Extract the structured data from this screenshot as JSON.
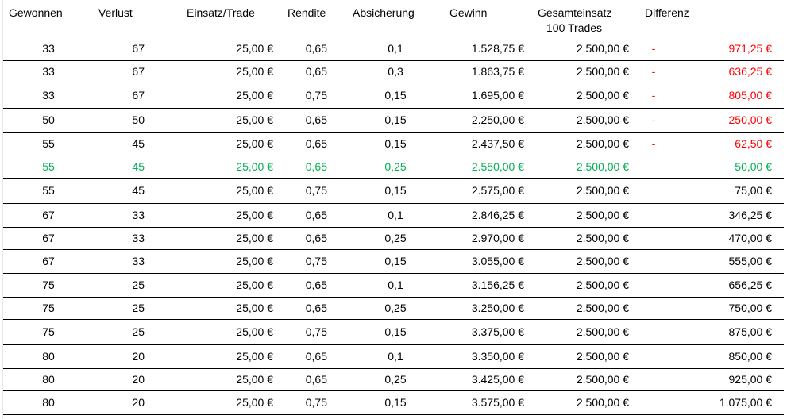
{
  "headers": {
    "won": "Gewonnen",
    "lost": "Verlust",
    "stake": "Einsatz/Trade",
    "return": "Rendite",
    "hedge": "Absicherung",
    "profit": "Gewinn",
    "total_stake": "Gesamteinsatz",
    "total_stake_sub": "100 Trades",
    "difference": "Differenz"
  },
  "colors": {
    "negative": "#ff0000",
    "highlight": "#00b050",
    "text": "#000000"
  },
  "rows": [
    {
      "won": "33",
      "lost": "67",
      "stake": "25,00 €",
      "return": "0,65",
      "hedge": "0,1",
      "profit": "1.528,75 €",
      "total": "2.500,00 €",
      "sign": "-",
      "diff": "971,25 €",
      "style": "neg"
    },
    {
      "won": "33",
      "lost": "67",
      "stake": "25,00 €",
      "return": "0,65",
      "hedge": "0,3",
      "profit": "1.863,75 €",
      "total": "2.500,00 €",
      "sign": "-",
      "diff": "636,25 €",
      "style": "neg"
    },
    {
      "won": "33",
      "lost": "67",
      "stake": "25,00 €",
      "return": "0,75",
      "hedge": "0,15",
      "profit": "1.695,00 €",
      "total": "2.500,00 €",
      "sign": "-",
      "diff": "805,00 €",
      "style": "neg"
    },
    {
      "won": "50",
      "lost": "50",
      "stake": "25,00 €",
      "return": "0,65",
      "hedge": "0,15",
      "profit": "2.250,00 €",
      "total": "2.500,00 €",
      "sign": "-",
      "diff": "250,00 €",
      "style": "neg"
    },
    {
      "won": "55",
      "lost": "45",
      "stake": "25,00 €",
      "return": "0,65",
      "hedge": "0,15",
      "profit": "2.437,50 €",
      "total": "2.500,00 €",
      "sign": "-",
      "diff": "62,50 €",
      "style": "neg"
    },
    {
      "won": "55",
      "lost": "45",
      "stake": "25,00 €",
      "return": "0,65",
      "hedge": "0,25",
      "profit": "2.550,00 €",
      "total": "2.500,00 €",
      "sign": "",
      "diff": "50,00 €",
      "style": "green"
    },
    {
      "won": "55",
      "lost": "45",
      "stake": "25,00 €",
      "return": "0,75",
      "hedge": "0,15",
      "profit": "2.575,00 €",
      "total": "2.500,00 €",
      "sign": "",
      "diff": "75,00 €",
      "style": "pos"
    },
    {
      "won": "67",
      "lost": "33",
      "stake": "25,00 €",
      "return": "0,65",
      "hedge": "0,1",
      "profit": "2.846,25 €",
      "total": "2.500,00 €",
      "sign": "",
      "diff": "346,25 €",
      "style": "pos"
    },
    {
      "won": "67",
      "lost": "33",
      "stake": "25,00 €",
      "return": "0,65",
      "hedge": "0,25",
      "profit": "2.970,00 €",
      "total": "2.500,00 €",
      "sign": "",
      "diff": "470,00 €",
      "style": "pos"
    },
    {
      "won": "67",
      "lost": "33",
      "stake": "25,00 €",
      "return": "0,75",
      "hedge": "0,15",
      "profit": "3.055,00 €",
      "total": "2.500,00 €",
      "sign": "",
      "diff": "555,00 €",
      "style": "pos"
    },
    {
      "won": "75",
      "lost": "25",
      "stake": "25,00 €",
      "return": "0,65",
      "hedge": "0,1",
      "profit": "3.156,25 €",
      "total": "2.500,00 €",
      "sign": "",
      "diff": "656,25 €",
      "style": "pos"
    },
    {
      "won": "75",
      "lost": "25",
      "stake": "25,00 €",
      "return": "0,65",
      "hedge": "0,25",
      "profit": "3.250,00 €",
      "total": "2.500,00 €",
      "sign": "",
      "diff": "750,00 €",
      "style": "pos"
    },
    {
      "won": "75",
      "lost": "25",
      "stake": "25,00 €",
      "return": "0,75",
      "hedge": "0,15",
      "profit": "3.375,00 €",
      "total": "2.500,00 €",
      "sign": "",
      "diff": "875,00 €",
      "style": "pos"
    },
    {
      "won": "80",
      "lost": "20",
      "stake": "25,00 €",
      "return": "0,65",
      "hedge": "0,1",
      "profit": "3.350,00 €",
      "total": "2.500,00 €",
      "sign": "",
      "diff": "850,00 €",
      "style": "pos"
    },
    {
      "won": "80",
      "lost": "20",
      "stake": "25,00 €",
      "return": "0,65",
      "hedge": "0,25",
      "profit": "3.425,00 €",
      "total": "2.500,00 €",
      "sign": "",
      "diff": "925,00 €",
      "style": "pos"
    },
    {
      "won": "80",
      "lost": "20",
      "stake": "25,00 €",
      "return": "0,75",
      "hedge": "0,15",
      "profit": "3.575,00 €",
      "total": "2.500,00 €",
      "sign": "",
      "diff": "1.075,00 €",
      "style": "pos"
    }
  ]
}
